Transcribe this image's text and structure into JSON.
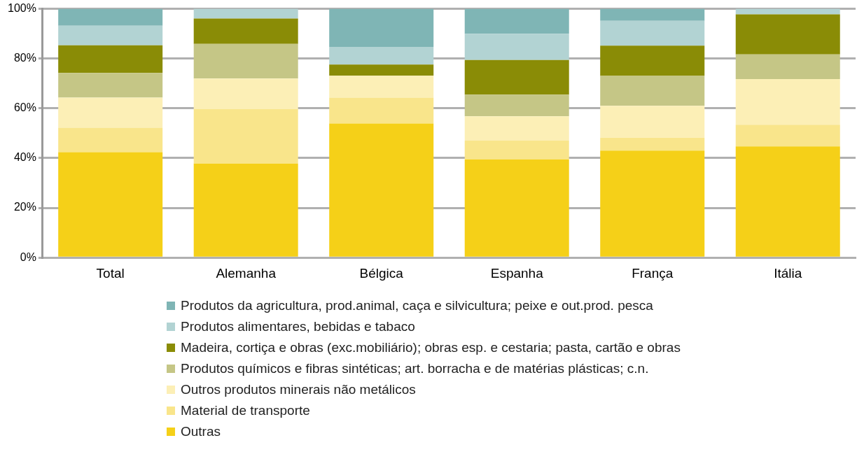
{
  "chart_data": {
    "type": "bar",
    "stacked": true,
    "categories": [
      "Total",
      "Alemanha",
      "Bélgica",
      "Espanha",
      "França",
      "Itália"
    ],
    "series": [
      {
        "name": "Outras",
        "color": "#f5d018",
        "values": [
          42.4,
          37.8,
          53.9,
          39.5,
          43.0,
          44.7
        ]
      },
      {
        "name": "Material de transporte",
        "color": "#f9e58b",
        "values": [
          9.8,
          21.9,
          10.4,
          7.5,
          5.2,
          8.7
        ]
      },
      {
        "name": "Outros produtos minerais não metálicos",
        "color": "#fcefb6",
        "values": [
          12.1,
          12.3,
          8.8,
          9.8,
          12.8,
          18.4
        ]
      },
      {
        "name": "Produtos químicos e fibras sintéticas; art. borracha e de matérias plásticas; c.n.",
        "color": "#c5c686",
        "values": [
          9.9,
          13.9,
          0,
          8.7,
          12.0,
          9.9
        ]
      },
      {
        "name": "Madeira, cortiça e obras (exc.mobiliário); obras esp. e cestaria; pasta, cartão e obras",
        "color": "#8a8c06",
        "values": [
          11.1,
          10.2,
          4.5,
          13.9,
          12.2,
          16.1
        ]
      },
      {
        "name": "Produtos alimentares, bebidas e tabaco",
        "color": "#b2d3d3",
        "values": [
          7.9,
          3.9,
          7.1,
          10.6,
          10.0,
          2.2
        ]
      },
      {
        "name": "Produtos da agricultura, prod.animal, caça e silvicultura; peixe e out.prod. pesca",
        "color": "#7fb5b5",
        "values": [
          6.8,
          0,
          15.3,
          10.0,
          4.8,
          0
        ]
      }
    ],
    "ylim": [
      0,
      100
    ],
    "yticks": [
      {
        "value": 0,
        "label": "0%"
      },
      {
        "value": 20,
        "label": "20%"
      },
      {
        "value": 40,
        "label": "40%"
      },
      {
        "value": 60,
        "label": "60%"
      },
      {
        "value": 80,
        "label": "80%"
      },
      {
        "value": 100,
        "label": "100%"
      }
    ],
    "grid": "y",
    "legend": "bottom"
  }
}
